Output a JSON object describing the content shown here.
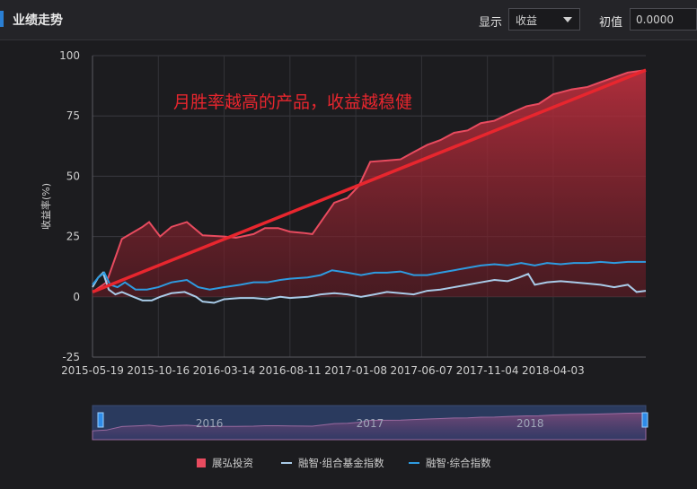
{
  "header": {
    "title": "业绩走势",
    "show_label": "显示",
    "select_value": "收益",
    "init_label": "初值",
    "init_value": "0.0000"
  },
  "annotation": "月胜率越高的产品，收益越稳健",
  "chart_data": {
    "type": "line",
    "ylabel": "收益率(%)",
    "ylim": [
      -25,
      100
    ],
    "yticks": [
      "100",
      "75",
      "50",
      "25",
      "0",
      "-25"
    ],
    "xlim": [
      "2015-05-19",
      "2018-10-31"
    ],
    "xticks": [
      "2015-05-19",
      "2015-10-16",
      "2016-03-14",
      "2016-08-11",
      "2017-01-08",
      "2017-06-07",
      "2017-11-04",
      "2018-04-03"
    ],
    "series": [
      {
        "name": "展弘投资",
        "color": "#e84b5f",
        "style": "area",
        "points": [
          [
            "2015-05-19",
            2
          ],
          [
            "2015-06-20",
            6
          ],
          [
            "2015-07-25",
            24
          ],
          [
            "2015-09-10",
            29
          ],
          [
            "2015-09-25",
            31
          ],
          [
            "2015-10-20",
            25
          ],
          [
            "2015-11-15",
            29
          ],
          [
            "2015-12-20",
            31
          ],
          [
            "2016-01-25",
            25.5
          ],
          [
            "2016-03-14",
            25
          ],
          [
            "2016-04-10",
            24.5
          ],
          [
            "2016-05-20",
            26
          ],
          [
            "2016-06-15",
            28.5
          ],
          [
            "2016-07-15",
            28.5
          ],
          [
            "2016-08-11",
            27
          ],
          [
            "2016-09-10",
            26.5
          ],
          [
            "2016-10-01",
            26
          ],
          [
            "2016-11-20",
            39
          ],
          [
            "2016-12-20",
            41
          ],
          [
            "2017-01-15",
            46
          ],
          [
            "2017-02-10",
            56
          ],
          [
            "2017-03-20",
            56.5
          ],
          [
            "2017-04-20",
            57
          ],
          [
            "2017-05-20",
            60
          ],
          [
            "2017-06-20",
            63
          ],
          [
            "2017-07-20",
            65
          ],
          [
            "2017-08-20",
            68
          ],
          [
            "2017-09-20",
            69
          ],
          [
            "2017-10-20",
            72
          ],
          [
            "2017-11-20",
            73
          ],
          [
            "2017-12-25",
            76
          ],
          [
            "2018-02-01",
            79
          ],
          [
            "2018-03-01",
            80
          ],
          [
            "2018-04-03",
            84
          ],
          [
            "2018-05-15",
            86
          ],
          [
            "2018-06-20",
            87
          ],
          [
            "2018-07-20",
            89
          ],
          [
            "2018-08-20",
            91
          ],
          [
            "2018-09-20",
            93
          ],
          [
            "2018-10-31",
            94
          ]
        ]
      },
      {
        "name": "融智·组合基金指数",
        "color": "#a9cbe8",
        "style": "line",
        "points": [
          [
            "2015-05-19",
            4
          ],
          [
            "2015-06-01",
            8
          ],
          [
            "2015-06-12",
            10
          ],
          [
            "2015-06-25",
            3
          ],
          [
            "2015-07-10",
            1
          ],
          [
            "2015-07-25",
            2
          ],
          [
            "2015-08-20",
            0
          ],
          [
            "2015-09-10",
            -1.5
          ],
          [
            "2015-10-01",
            -1.5
          ],
          [
            "2015-10-20",
            0
          ],
          [
            "2015-11-15",
            1.5
          ],
          [
            "2015-12-15",
            2
          ],
          [
            "2016-01-10",
            0
          ],
          [
            "2016-01-25",
            -2
          ],
          [
            "2016-02-20",
            -2.5
          ],
          [
            "2016-03-14",
            -1
          ],
          [
            "2016-04-20",
            -0.5
          ],
          [
            "2016-05-20",
            -0.5
          ],
          [
            "2016-06-20",
            -1
          ],
          [
            "2016-07-20",
            0
          ],
          [
            "2016-08-11",
            -0.5
          ],
          [
            "2016-09-20",
            0
          ],
          [
            "2016-10-20",
            1
          ],
          [
            "2016-11-20",
            1.5
          ],
          [
            "2016-12-20",
            1
          ],
          [
            "2017-01-20",
            0
          ],
          [
            "2017-02-20",
            1
          ],
          [
            "2017-03-20",
            2
          ],
          [
            "2017-04-20",
            1.5
          ],
          [
            "2017-05-20",
            1
          ],
          [
            "2017-06-20",
            2.5
          ],
          [
            "2017-07-20",
            3
          ],
          [
            "2017-08-20",
            4
          ],
          [
            "2017-09-20",
            5
          ],
          [
            "2017-10-20",
            6
          ],
          [
            "2017-11-20",
            7
          ],
          [
            "2017-12-20",
            6.5
          ],
          [
            "2018-01-15",
            8
          ],
          [
            "2018-02-05",
            9.5
          ],
          [
            "2018-02-20",
            5
          ],
          [
            "2018-03-20",
            6
          ],
          [
            "2018-04-20",
            6.5
          ],
          [
            "2018-05-20",
            6
          ],
          [
            "2018-06-20",
            5.5
          ],
          [
            "2018-07-20",
            5
          ],
          [
            "2018-08-20",
            4
          ],
          [
            "2018-09-20",
            5
          ],
          [
            "2018-10-10",
            2
          ],
          [
            "2018-10-31",
            2.5
          ]
        ]
      },
      {
        "name": "融智·综合指数",
        "color": "#2e9be0",
        "style": "line",
        "points": [
          [
            "2015-05-19",
            5
          ],
          [
            "2015-06-01",
            8
          ],
          [
            "2015-06-15",
            10
          ],
          [
            "2015-06-28",
            5
          ],
          [
            "2015-07-15",
            4
          ],
          [
            "2015-08-01",
            6
          ],
          [
            "2015-08-25",
            3
          ],
          [
            "2015-09-20",
            3
          ],
          [
            "2015-10-16",
            4
          ],
          [
            "2015-11-15",
            6
          ],
          [
            "2015-12-20",
            7
          ],
          [
            "2016-01-15",
            4
          ],
          [
            "2016-02-10",
            3
          ],
          [
            "2016-03-14",
            4
          ],
          [
            "2016-04-20",
            5
          ],
          [
            "2016-05-20",
            6
          ],
          [
            "2016-06-20",
            6
          ],
          [
            "2016-07-20",
            7
          ],
          [
            "2016-08-11",
            7.5
          ],
          [
            "2016-09-20",
            8
          ],
          [
            "2016-10-20",
            9
          ],
          [
            "2016-11-15",
            11
          ],
          [
            "2016-12-20",
            10
          ],
          [
            "2017-01-20",
            9
          ],
          [
            "2017-02-20",
            10
          ],
          [
            "2017-03-20",
            10
          ],
          [
            "2017-04-20",
            10.5
          ],
          [
            "2017-05-20",
            9
          ],
          [
            "2017-06-20",
            9
          ],
          [
            "2017-07-20",
            10
          ],
          [
            "2017-08-20",
            11
          ],
          [
            "2017-09-20",
            12
          ],
          [
            "2017-10-20",
            13
          ],
          [
            "2017-11-20",
            13.5
          ],
          [
            "2017-12-20",
            13
          ],
          [
            "2018-01-20",
            14
          ],
          [
            "2018-02-20",
            13
          ],
          [
            "2018-03-20",
            14
          ],
          [
            "2018-04-20",
            13.5
          ],
          [
            "2018-05-20",
            14
          ],
          [
            "2018-06-20",
            14
          ],
          [
            "2018-07-20",
            14.5
          ],
          [
            "2018-08-20",
            14
          ],
          [
            "2018-09-20",
            14.5
          ],
          [
            "2018-10-31",
            14.5
          ]
        ]
      }
    ],
    "trendline": {
      "color": "#e8262e",
      "points": [
        [
          "2015-05-19",
          2
        ],
        [
          "2018-10-31",
          94
        ]
      ]
    },
    "navigator": {
      "labels": [
        "2016",
        "2017",
        "2018"
      ],
      "label_dates": [
        "2016-01-01",
        "2017-01-01",
        "2018-01-01"
      ]
    },
    "legend_position": "bottom"
  }
}
